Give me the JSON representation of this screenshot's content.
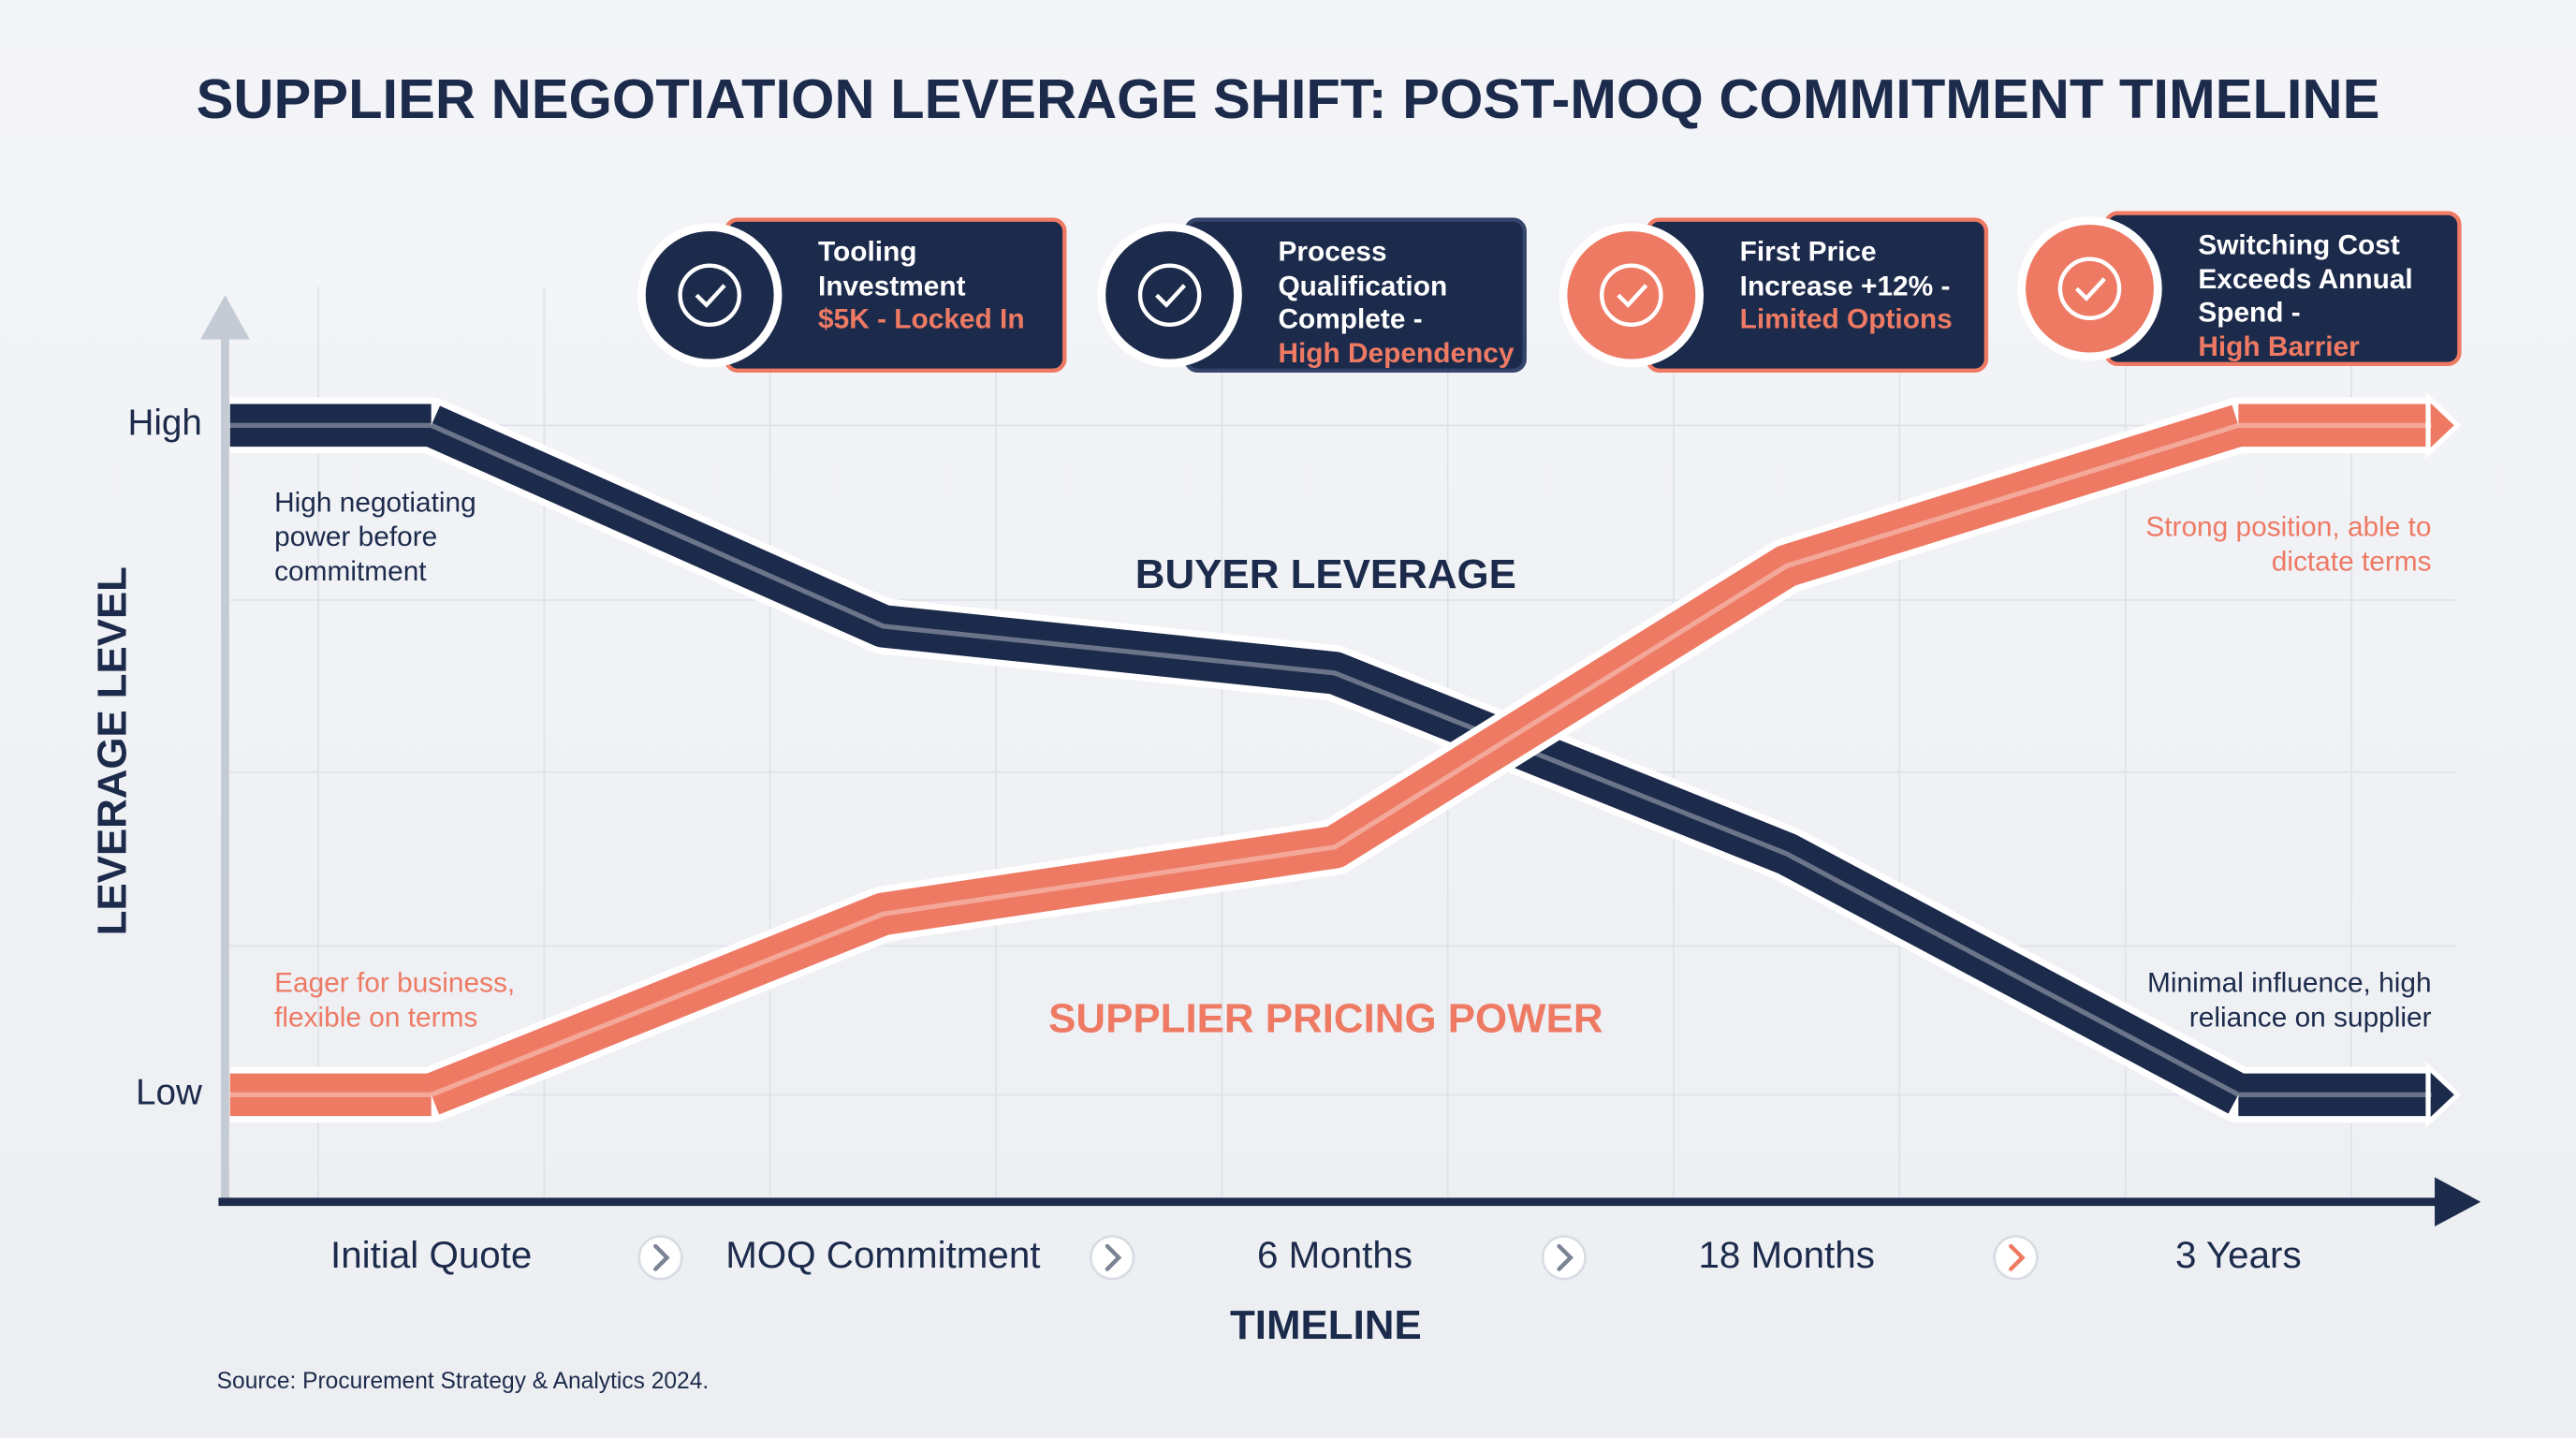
{
  "chart_data": {
    "type": "line",
    "title": "SUPPLIER NEGOTIATION LEVERAGE SHIFT: POST-MOQ COMMITMENT TIMELINE",
    "x_label": "TIMELINE",
    "y_label": "LEVERAGE LEVEL",
    "categories": [
      "Initial Quote",
      "MOQ Commitment",
      "6 Months",
      "18 Months",
      "3 Years"
    ],
    "series": [
      {
        "name": "BUYER LEVERAGE",
        "color": "#1c2b4b",
        "values": [
          100,
          70,
          63,
          36,
          0
        ]
      },
      {
        "name": "SUPPLIER PRICING POWER",
        "color": "#ee7a64",
        "values": [
          0,
          27,
          37,
          79,
          100
        ]
      }
    ],
    "ylim": [
      -16,
      117
    ],
    "yticks": [
      {
        "value": 0,
        "label": "Low"
      },
      {
        "value": 100,
        "label": "High"
      }
    ],
    "grid": true,
    "annotations": [
      "High negotiating power before commitment",
      "Strong position, able to dictate terms",
      "Eager for business, flexible on terms",
      "Minimal influence, high reliance on supplier"
    ],
    "callouts": [
      {
        "title": "Tooling Investment",
        "detail": "$5K - Locked In"
      },
      {
        "title": "Process Qualification Complete -",
        "detail": "High Dependency"
      },
      {
        "title": "First Price Increase +12% -",
        "detail": "Limited Options"
      },
      {
        "title": "Switching Cost Exceeds Annual Spend -",
        "detail": "High Barrier"
      }
    ],
    "source": "Source: Procurement Strategy & Analytics 2024."
  }
}
